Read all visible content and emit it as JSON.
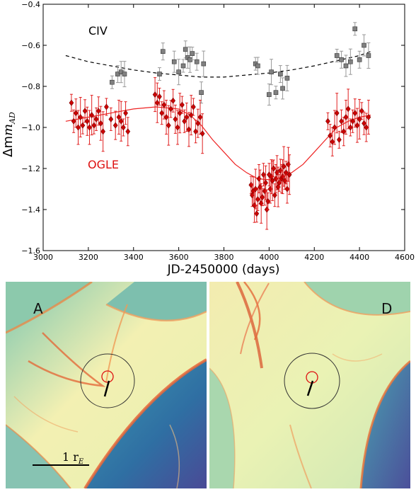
{
  "chart_data": {
    "type": "scatter",
    "xlabel": "JD-2450000 (days)",
    "ylabel_main": "Δm",
    "ylabel_sub": "AD",
    "xlim": [
      3000,
      4600
    ],
    "ylim": [
      -1.6,
      -0.4
    ],
    "y_inverted": true,
    "xticks": [
      "3000",
      "3200",
      "3400",
      "3600",
      "3800",
      "4000",
      "4200",
      "4400",
      "4600"
    ],
    "yticks": [
      "−0.4",
      "−0.6",
      "−0.8",
      "−1.0",
      "−1.2",
      "−1.4",
      "−1.6"
    ],
    "series": [
      {
        "name": "CIV",
        "color": "#808080",
        "marker": "square",
        "fit": "dashed",
        "fit_color": "#000000",
        "x": [
          3305,
          3330,
          3345,
          3360,
          3515,
          3530,
          3580,
          3600,
          3620,
          3630,
          3640,
          3650,
          3660,
          3680,
          3700,
          3710,
          3940,
          3950,
          4000,
          4010,
          4030,
          4050,
          4060,
          4080,
          4300,
          4320,
          4340,
          4360,
          4380,
          4400,
          4420,
          4440
        ],
        "y": [
          -0.78,
          -0.74,
          -0.73,
          -0.74,
          -0.74,
          -0.63,
          -0.68,
          -0.73,
          -0.7,
          -0.62,
          -0.66,
          -0.67,
          -0.64,
          -0.68,
          -0.83,
          -0.69,
          -0.69,
          -0.7,
          -0.84,
          -0.73,
          -0.83,
          -0.74,
          -0.81,
          -0.76,
          -0.65,
          -0.67,
          -0.7,
          -0.68,
          -0.52,
          -0.67,
          -0.6,
          -0.65
        ]
      },
      {
        "name": "OGLE",
        "color": "#cc0000",
        "marker": "diamond",
        "fit": "solid",
        "fit_color": "#ee2222",
        "x": [
          3125,
          3135,
          3145,
          3155,
          3165,
          3175,
          3185,
          3195,
          3205,
          3215,
          3225,
          3235,
          3245,
          3255,
          3265,
          3280,
          3300,
          3320,
          3335,
          3345,
          3355,
          3365,
          3375,
          3495,
          3505,
          3515,
          3525,
          3535,
          3545,
          3555,
          3565,
          3575,
          3585,
          3595,
          3605,
          3615,
          3625,
          3635,
          3645,
          3655,
          3665,
          3675,
          3685,
          3695,
          3705,
          3920,
          3925,
          3930,
          3935,
          3940,
          3945,
          3950,
          3955,
          3960,
          3965,
          3970,
          3975,
          3980,
          3985,
          3990,
          3995,
          4000,
          4005,
          4010,
          4015,
          4020,
          4025,
          4030,
          4035,
          4040,
          4045,
          4050,
          4055,
          4060,
          4065,
          4070,
          4075,
          4080,
          4085,
          4090,
          4260,
          4270,
          4280,
          4290,
          4300,
          4310,
          4320,
          4330,
          4340,
          4350,
          4360,
          4370,
          4380,
          4390,
          4400,
          4410,
          4420,
          4430,
          4440
        ],
        "y": [
          -0.88,
          -0.97,
          -0.93,
          -1.0,
          -0.95,
          -0.99,
          -0.92,
          -0.97,
          -1.0,
          -0.94,
          -0.99,
          -0.96,
          -0.92,
          -0.98,
          -1.02,
          -0.9,
          -0.96,
          -0.99,
          -0.95,
          -0.97,
          -1.0,
          -0.93,
          -1.02,
          -0.84,
          -0.88,
          -0.85,
          -0.93,
          -0.89,
          -0.95,
          -0.99,
          -0.91,
          -0.87,
          -0.96,
          -1.0,
          -0.93,
          -0.89,
          -0.97,
          -0.95,
          -1.01,
          -0.94,
          -0.9,
          -1.02,
          -0.98,
          -0.95,
          -1.03,
          -1.28,
          -1.33,
          -1.31,
          -1.38,
          -1.3,
          -1.42,
          -1.35,
          -1.25,
          -1.29,
          -1.37,
          -1.34,
          -1.23,
          -1.31,
          -1.27,
          -1.4,
          -1.36,
          -1.23,
          -1.3,
          -1.24,
          -1.26,
          -1.2,
          -1.33,
          -1.25,
          -1.22,
          -1.29,
          -1.27,
          -1.21,
          -1.25,
          -1.24,
          -1.19,
          -1.26,
          -1.22,
          -1.3,
          -1.18,
          -1.23,
          -0.97,
          -1.04,
          -1.07,
          -1.0,
          -0.93,
          -1.06,
          -0.97,
          -1.02,
          -0.95,
          -0.91,
          -1.0,
          -0.97,
          -0.93,
          -0.99,
          -0.96,
          -0.92,
          -0.98,
          -1.0,
          -0.95
        ]
      }
    ],
    "fits": {
      "CIV": {
        "x": [
          3100,
          3200,
          3300,
          3400,
          3500,
          3600,
          3700,
          3800,
          3900,
          4000,
          4100,
          4200,
          4300,
          4400,
          4450
        ],
        "y": [
          -0.65,
          -0.68,
          -0.7,
          -0.72,
          -0.735,
          -0.745,
          -0.755,
          -0.755,
          -0.745,
          -0.735,
          -0.72,
          -0.7,
          -0.675,
          -0.65,
          -0.63
        ]
      },
      "OGLE": {
        "x": [
          3100,
          3200,
          3300,
          3400,
          3500,
          3600,
          3650,
          3700,
          3750,
          3800,
          3850,
          3900,
          3950,
          4000,
          4050,
          4100,
          4150,
          4200,
          4250,
          4300,
          4350,
          4400,
          4450
        ],
        "y": [
          -0.97,
          -0.95,
          -0.93,
          -0.91,
          -0.9,
          -0.91,
          -0.94,
          -0.99,
          -1.06,
          -1.12,
          -1.18,
          -1.22,
          -1.25,
          -1.255,
          -1.245,
          -1.22,
          -1.18,
          -1.12,
          -1.06,
          -1.0,
          -0.97,
          -0.95,
          -0.94
        ]
      }
    },
    "panels": [
      {
        "label": "A",
        "scale_label": "1 r",
        "scale_sub": "E"
      },
      {
        "label": "D"
      }
    ]
  }
}
